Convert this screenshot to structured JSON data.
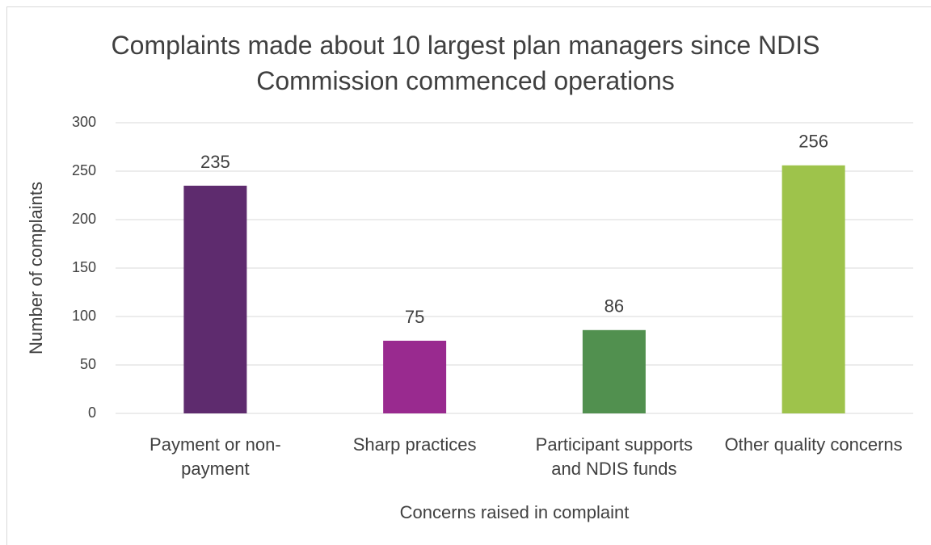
{
  "chart_data": {
    "type": "bar",
    "title": "Complaints made about 10 largest plan managers since NDIS Commission commenced operations",
    "x_label": "Concerns raised in complaint",
    "y_label": "Number of complaints",
    "categories": [
      "Payment or non-payment",
      "Sharp practices",
      "Participant supports and NDIS funds",
      "Other quality concerns"
    ],
    "values": [
      235,
      75,
      86,
      256
    ],
    "colors": [
      "#5e2b6e",
      "#992a8f",
      "#51904f",
      "#9ec34b"
    ],
    "ylim": [
      0,
      300
    ],
    "yticks": [
      0,
      50,
      100,
      150,
      200,
      250,
      300
    ],
    "grid": true
  }
}
